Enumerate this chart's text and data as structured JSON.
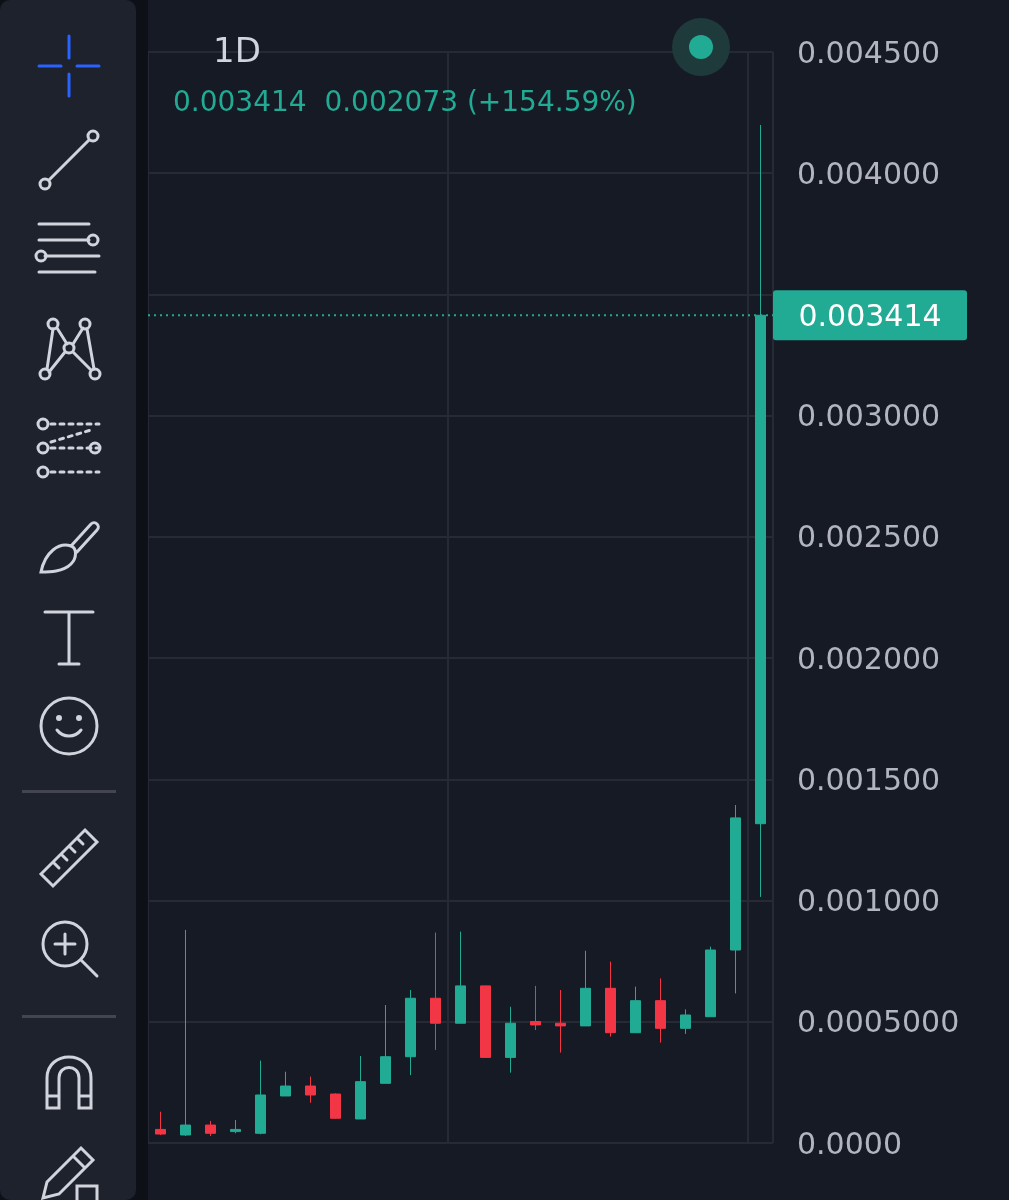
{
  "chart_data": {
    "type": "candlestick",
    "title": "1D",
    "subtitle": "0.003414  0.002073 (+154.59%)",
    "categories": [
      null,
      null,
      null,
      null,
      null,
      null,
      null,
      null,
      null,
      null,
      null,
      null,
      null,
      null,
      null,
      null,
      null,
      null,
      null,
      null,
      null,
      null,
      null,
      null,
      null
    ],
    "ohlc": [
      [
        5.6e-05,
        0.000129,
        3.3e-05,
        3.7e-05
      ],
      [
        3.3e-05,
        0.000879,
        2.9e-05,
        7.4e-05
      ],
      [
        7.4e-05,
        9.1e-05,
        2.9e-05,
        4e-05
      ],
      [
        4.7e-05,
        9.5e-05,
        4e-05,
        5.6e-05
      ],
      [
        4e-05,
        0.00034,
        3.6e-05,
        0.000198
      ],
      [
        0.000194,
        0.000294,
        0.000194,
        0.000235
      ],
      [
        0.000235,
        0.000274,
        0.000166,
        0.000198
      ],
      [
        0.000202,
        0.000205,
        9.9e-05,
        0.000102
      ],
      [
        9.9e-05,
        0.000359,
        9.9e-05,
        0.000253
      ],
      [
        0.000246,
        0.000569,
        0.000246,
        0.000356
      ],
      [
        0.000356,
        0.000631,
        0.00028,
        0.000597
      ],
      [
        0.000597,
        0.000868,
        0.000384,
        0.000494
      ],
      [
        0.000494,
        0.000872,
        0.000494,
        0.000648
      ],
      [
        0.000648,
        0.000648,
        0.000353,
        0.000353
      ],
      [
        0.000353,
        0.000562,
        0.00029,
        0.000494
      ],
      [
        0.000501,
        0.000648,
        0.000466,
        0.000487
      ],
      [
        0.000494,
        0.000631,
        0.000373,
        0.000483
      ],
      [
        0.000483,
        0.000793,
        0.000483,
        0.000638
      ],
      [
        0.000638,
        0.000748,
        0.000439,
        0.000455
      ],
      [
        0.000455,
        0.000645,
        0.000455,
        0.000587
      ],
      [
        0.000587,
        0.000679,
        0.000414,
        0.000473
      ],
      [
        0.000473,
        0.000551,
        0.00045,
        0.000528
      ],
      [
        0.000521,
        0.00081,
        0.000521,
        0.000796
      ],
      [
        0.000796,
        0.001394,
        0.000617,
        0.001341
      ],
      [
        0.001317,
        0.004199,
        0.001015,
        0.003414
      ]
    ],
    "colors": [
      "#f23645",
      "#22ab94",
      "#f23645",
      "#22ab94",
      "#22ab94",
      "#22ab94",
      "#f23645",
      "#f23645",
      "#22ab94",
      "#22ab94",
      "#22ab94",
      "#f23645",
      "#22ab94",
      "#f23645",
      "#22ab94",
      "#f23645",
      "#f23645",
      "#22ab94",
      "#f23645",
      "#22ab94",
      "#f23645",
      "#22ab94",
      "#22ab94",
      "#22ab94",
      "#22ab94"
    ],
    "ylim": [
      0,
      0.0045
    ],
    "yticks": [
      {
        "value": 0,
        "label": "0.0000"
      },
      {
        "value": 0.0005,
        "label": "0.0005000"
      },
      {
        "value": 0.001,
        "label": "0.001000"
      },
      {
        "value": 0.0015,
        "label": "0.001500"
      },
      {
        "value": 0.002,
        "label": "0.002000"
      },
      {
        "value": 0.0025,
        "label": "0.002500"
      },
      {
        "value": 0.003,
        "label": "0.003000"
      },
      {
        "value": 0.0035,
        "label": null
      },
      {
        "value": 0.004,
        "label": "0.004000"
      },
      {
        "value": 0.0045,
        "label": "0.004500"
      }
    ],
    "grid": true,
    "tick_labels": "y",
    "ref_lines": [
      {
        "axis": "y",
        "value": 0.003414,
        "label": "0.003414",
        "color": "#22ab94",
        "line_style": "dotted"
      }
    ]
  }
}
